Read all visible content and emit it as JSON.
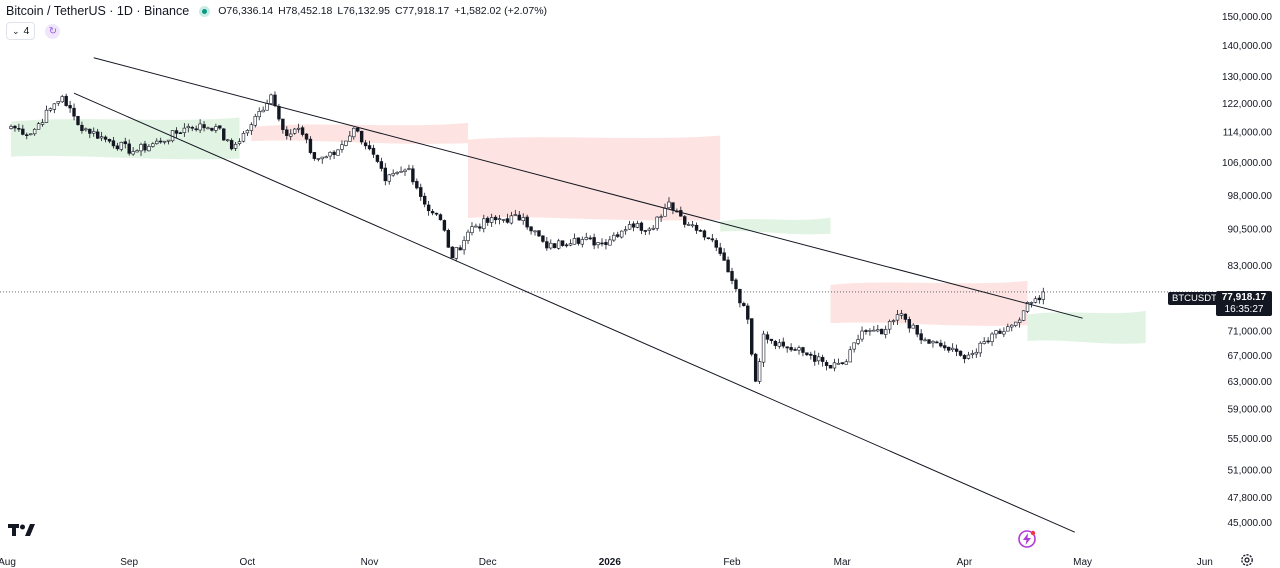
{
  "header": {
    "symbol_title": "Bitcoin / TetherUS · 1D · Binance",
    "open": "O76,336.14",
    "high": "H78,452.18",
    "low": "L76,132.95",
    "close": "C77,918.17",
    "change": "+1,582.02 (+2.07%)"
  },
  "toolbar": {
    "collapse_count": "4"
  },
  "last_price": {
    "symbol": "BTCUSDT",
    "price": "77,918.17",
    "countdown": "16:35:27"
  },
  "colors": {
    "candle_up_fill": "#ffffff",
    "candle_down_fill": "#131722",
    "cloud_bull": "#dff2e0",
    "cloud_bear": "#fde2df",
    "trendline": "#131722",
    "icon_accent": "#9b5de5"
  },
  "icons": [
    "chevron-down-icon",
    "refresh-icon",
    "tradingview-logo",
    "flash-icon",
    "settings-icon"
  ],
  "chart_data": {
    "type": "candlestick",
    "title": "",
    "xlabel": "",
    "ylabel": "",
    "y_scale": "log",
    "ylim": [
      43500,
      152000
    ],
    "price_ticks": [
      "150,000.00",
      "140,000.00",
      "130,000.00",
      "122,000.00",
      "114,000.00",
      "106,000.00",
      "98,000.00",
      "90,500.00",
      "83,000.00",
      "71,000.00",
      "67,000.00",
      "63,000.00",
      "59,000.00",
      "55,000.00",
      "51,000.00",
      "47,800.00",
      "45,000.00"
    ],
    "time_ticks": [
      {
        "label": "Aug",
        "date": "2025-08-01"
      },
      {
        "label": "Sep",
        "date": "2025-09-01"
      },
      {
        "label": "Oct",
        "date": "2025-10-01"
      },
      {
        "label": "Nov",
        "date": "2025-11-01"
      },
      {
        "label": "Dec",
        "date": "2025-12-01"
      },
      {
        "label": "2026",
        "date": "2026-01-01",
        "bold": true
      },
      {
        "label": "Feb",
        "date": "2026-02-01"
      },
      {
        "label": "Mar",
        "date": "2026-03-01"
      },
      {
        "label": "Apr",
        "date": "2026-04-01"
      },
      {
        "label": "May",
        "date": "2026-05-01"
      },
      {
        "label": "Jun",
        "date": "2026-06-01"
      }
    ],
    "last_close": 77918.17,
    "price_anchors": [
      [
        "2025-08-01",
        115500
      ],
      [
        "2025-08-06",
        113500
      ],
      [
        "2025-08-11",
        120500
      ],
      [
        "2025-08-14",
        124000
      ],
      [
        "2025-08-18",
        116000
      ],
      [
        "2025-08-25",
        112000
      ],
      [
        "2025-09-01",
        108800
      ],
      [
        "2025-09-08",
        111500
      ],
      [
        "2025-09-15",
        115500
      ],
      [
        "2025-09-22",
        115500
      ],
      [
        "2025-09-26",
        109500
      ],
      [
        "2025-10-01",
        116000
      ],
      [
        "2025-10-06",
        124500
      ],
      [
        "2025-10-10",
        113000
      ],
      [
        "2025-10-13",
        115000
      ],
      [
        "2025-10-17",
        107000
      ],
      [
        "2025-10-22",
        108000
      ],
      [
        "2025-10-27",
        115000
      ],
      [
        "2025-10-31",
        109500
      ],
      [
        "2025-11-04",
        101500
      ],
      [
        "2025-11-10",
        104500
      ],
      [
        "2025-11-14",
        96000
      ],
      [
        "2025-11-18",
        92500
      ],
      [
        "2025-11-21",
        84500
      ],
      [
        "2025-11-26",
        91000
      ],
      [
        "2025-12-02",
        92500
      ],
      [
        "2025-12-09",
        93000
      ],
      [
        "2025-12-15",
        86500
      ],
      [
        "2025-12-22",
        88500
      ],
      [
        "2025-12-29",
        87500
      ],
      [
        "2026-01-05",
        91500
      ],
      [
        "2026-01-10",
        90500
      ],
      [
        "2026-01-15",
        96500
      ],
      [
        "2026-01-20",
        91500
      ],
      [
        "2026-01-25",
        88500
      ],
      [
        "2026-01-29",
        84000
      ],
      [
        "2026-02-01",
        78500
      ],
      [
        "2026-02-04",
        73000
      ],
      [
        "2026-02-06",
        63000
      ],
      [
        "2026-02-08",
        70500
      ],
      [
        "2026-02-13",
        68500
      ],
      [
        "2026-02-20",
        67000
      ],
      [
        "2026-02-25",
        65000
      ],
      [
        "2026-03-01",
        66000
      ],
      [
        "2026-03-05",
        71000
      ],
      [
        "2026-03-10",
        70500
      ],
      [
        "2026-03-15",
        74000
      ],
      [
        "2026-03-20",
        69500
      ],
      [
        "2026-03-25",
        68500
      ],
      [
        "2026-03-30",
        67000
      ],
      [
        "2026-04-03",
        67500
      ],
      [
        "2026-04-07",
        70500
      ],
      [
        "2026-04-12",
        72000
      ],
      [
        "2026-04-15",
        74500
      ],
      [
        "2026-04-17",
        76000
      ],
      [
        "2026-04-20",
        77918.17
      ]
    ],
    "trendlines": [
      {
        "name": "",
        "from": [
          "2025-08-22",
          136000
        ],
        "to": [
          "2026-04-30",
          73200
        ]
      },
      {
        "name": "",
        "from": [
          "2025-08-17",
          125000
        ],
        "to": [
          "2026-04-28",
          44000
        ]
      }
    ],
    "ichimoku_cloud": [
      {
        "sentiment": "bullish",
        "from": "2025-08-01",
        "to": "2025-09-28",
        "top": 118000,
        "bottom": 107000
      },
      {
        "sentiment": "bearish",
        "from": "2025-10-01",
        "to": "2025-11-25",
        "top": 116500,
        "bottom": 111000
      },
      {
        "sentiment": "bearish",
        "from": "2025-11-25",
        "to": "2026-01-28",
        "top": 113000,
        "bottom": 92500
      },
      {
        "sentiment": "bullish",
        "from": "2026-01-28",
        "to": "2026-02-25",
        "top": 93000,
        "bottom": 89500
      },
      {
        "sentiment": "bearish",
        "from": "2026-02-25",
        "to": "2026-04-16",
        "top": 80000,
        "bottom": 72000
      },
      {
        "sentiment": "bullish",
        "from": "2026-04-16",
        "to": "2026-05-16",
        "top": 74500,
        "bottom": 69000
      }
    ]
  }
}
